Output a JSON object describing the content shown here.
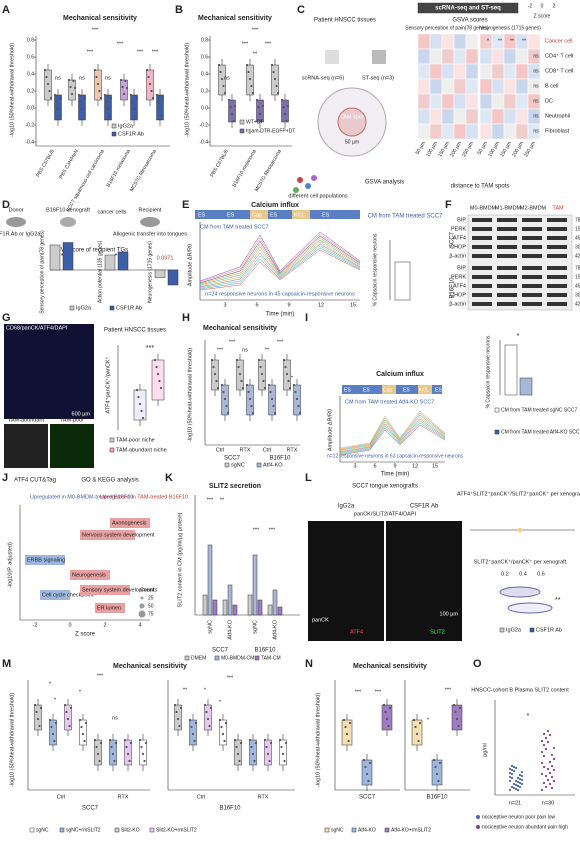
{
  "A": {
    "letter": "A",
    "title": "Mechanical sensitivity",
    "ylabel": "-log10 (50%heat-withdrawal threshold)",
    "yticks": [
      "0.8",
      "0.6",
      "0.4",
      "0.2",
      "0.0",
      "-0.2",
      "-0.4"
    ],
    "groups": [
      "PBS C57BL/6",
      "PBS C3H/HeN",
      "SCC7 squamous cell carcinoma",
      "B16F10 melanoma",
      "MC57G fibrosarcoma"
    ],
    "legend": [
      "IgG2a",
      "CSF1R Ab"
    ],
    "sig": [
      "***",
      "***",
      "***",
      "***",
      "***",
      "ns",
      "ns",
      "ns"
    ]
  },
  "B": {
    "letter": "B",
    "title": "Mechanical sensitivity",
    "ylabel": "-log10 (50%heat-withdrawal threshold)",
    "yticks": [
      "0.8",
      "0.6",
      "0.4",
      "0.2",
      "0.0",
      "-0.2",
      "-0.4"
    ],
    "groups": [
      "PBS C57BL/6",
      "B16F10 melanoma",
      "MC57G fibrosarcoma"
    ],
    "legend": [
      "WT+DT",
      "Itgam-DTR-EGFP+DT"
    ],
    "sig": [
      "***",
      "***",
      "***",
      "**",
      "ns"
    ]
  },
  "C": {
    "letter": "C",
    "tissue": "Patient HNSCC tissues",
    "sc": "scRNA-seq (n=6)",
    "st": "ST-seq (n=3)",
    "spot": "TAM spot",
    "dist": "50 µm",
    "cells": "different cell populations",
    "gsva": "GSVA analysis",
    "header": "scRNA-seq and ST-seq",
    "scores": "GSVA scores",
    "col1": "Sensory perception of pain(78 genes)",
    "col2": "Neurogenesis (1715 genes)",
    "scale": [
      "-2",
      "0",
      "2"
    ],
    "zscore": "Z score",
    "rows": [
      "Cancer cell",
      "CD4⁺ T cell",
      "CD8⁺ T cell",
      "B cell",
      "DC",
      "Neutrophil",
      "Fibroblast"
    ],
    "xlabels": [
      "50 µm",
      "100 µm",
      "150 µm",
      "200 µm",
      "250 µm"
    ],
    "xtitle": "distance to TAM spots",
    "marks": [
      "*",
      "**",
      "**",
      "**",
      "ns",
      "ns",
      "ns",
      "ns",
      "ns",
      "ns"
    ]
  },
  "D": {
    "letter": "D",
    "donor": "Donor",
    "xeno": "B16F10 xenograft",
    "cancer": "cancer cells",
    "recipient": "Recipient",
    "treat": "CSF1R Ab or IgG2a",
    "transfer": "Allogenic transfer into tongues",
    "title": "GSVA score of recipient TGs",
    "ylabels": [
      "Sensory perception of pain(78 genes)",
      "Action potential (135 genes)",
      "Neurogenesis (1715 genes)"
    ],
    "p": "0.0971",
    "sig": [
      "*",
      "*"
    ],
    "legend": [
      "IgG2a",
      "CSF1R Ab"
    ]
  },
  "E": {
    "letter": "E",
    "title": "Calcium influx",
    "stim": [
      "ES",
      "ES",
      "Cap",
      "ES",
      "KCL",
      "ES"
    ],
    "treat": "CM from TAM treated SCC7",
    "ylabel": "Amplitude ΔR/R0",
    "xlabel": "Time (min)",
    "xticks": [
      "3",
      "6",
      "9",
      "12",
      "15"
    ],
    "note": "n=24 responsive neurons in 45 capsaicin-responsive neurons",
    "right_title": "CM from TAM treated SCC7",
    "right_ylabel": "% Capsaicin responsive neurons"
  },
  "F": {
    "letter": "F",
    "cols": [
      "M0-BMDM",
      "M1-BMDM",
      "M2-BMDM",
      "TAM"
    ],
    "rows": [
      "BIP",
      "PERK",
      "ATF4",
      "CHOP",
      "β-actin"
    ],
    "kda": [
      "78",
      "150",
      "49",
      "30",
      "42"
    ],
    "lines": [
      "SCC7",
      "B16F10"
    ]
  },
  "G": {
    "letter": "G",
    "stain": "CD68/panCK/ATF4/DAPI",
    "tissue": "Patient HNSCC tissues",
    "scale": "600 µm",
    "inset1": "TAM-abundant",
    "inset2": "TAM-poor",
    "ylabel": "ATF4⁺panCK⁺/panCK⁺",
    "sig": "***",
    "legend": [
      "TAM-poor niche",
      "TAM-abundant niche"
    ]
  },
  "H": {
    "letter": "H",
    "title": "Mechanical sensitivity",
    "ylabel": "-log10 (50%heat-withdrawal threshold)",
    "lines": [
      "SCC7",
      "B16F10"
    ],
    "cond": [
      "Ctrl",
      "RTX"
    ],
    "legend": [
      "sgNC",
      "Atf4-KO"
    ],
    "sig": [
      "***",
      "***",
      "ns",
      "***",
      "**",
      "*"
    ]
  },
  "I": {
    "letter": "I",
    "title": "Calcium influx",
    "stim": [
      "ES",
      "ES",
      "Cap",
      "ES",
      "KCL",
      "ES"
    ],
    "treat": "CM from TAM treated Atf4-KO SCC7",
    "ylabel": "Amplitude ΔR/R0",
    "xlabel": "Time (min)",
    "xticks": [
      "3",
      "6",
      "9",
      "12",
      "15"
    ],
    "note": "n=12 responsive neurons in 63 capsaicin-responsive neurons",
    "right_ylabel": "% Capsaicin responsive neurons",
    "sig": "*",
    "legend": [
      "CM from TAM treated sgNC SCC7",
      "CM from TAM treated Atf4-KO SCC7"
    ]
  },
  "J": {
    "letter": "J",
    "t1": "ATF4 CUT&Tag",
    "t2": "GO & KEGG analysis",
    "up1": "Upregulated in M0-BMDM-treated B16F10",
    "up2": "Upregulated in TAM-treated B16F10",
    "terms": [
      "ERBB signaling",
      "Nervous system development",
      "Axonogenesis",
      "Neurogenesis",
      "Cell cycle checkpoint",
      "Sensory system development",
      "ER lumen"
    ],
    "counts": "Counts",
    "count_ticks": [
      "25",
      "50",
      "75"
    ],
    "xlabel": "Z score",
    "ylabel": "-log10(P. adjusted)",
    "xticks": [
      "-2",
      "0",
      "2",
      "4"
    ]
  },
  "K": {
    "letter": "K",
    "title": "SLIT2 secretion",
    "ylabel": "SLIT2 content in CM (pg/ml/µg protein)",
    "groups": [
      "sgNC",
      "Atf4-KO",
      "sgNC",
      "Atf4-KO"
    ],
    "lines": [
      "SCC7",
      "B16F10"
    ],
    "legend": [
      "DMEM",
      "M0-BMDM-CM",
      "TAM-CM"
    ],
    "sig": [
      "***",
      "**",
      "***",
      "***"
    ]
  },
  "L": {
    "letter": "L",
    "title": "SCC7 tongue xenografts",
    "g1": "IgG2a",
    "g2": "CSF1R Ab",
    "stain": "panCK/SLIT2/ATF4/DAPI",
    "scale": "100 µm",
    "ch": [
      "panCK",
      "ATF4",
      "SLIT2"
    ],
    "q1": "ATF4⁺SLIT2⁺panCK⁺/SLIT2⁺panCK⁺ per xenograft",
    "q2": "SLIT2⁺panCK⁺/panCK⁺ per xenograft",
    "ticks": [
      "0.2",
      "0.4",
      "0.6"
    ],
    "sig": "**",
    "legend": [
      "IgG2a",
      "CSF1R Ab"
    ]
  },
  "M": {
    "letter": "M",
    "title": "Mechanical sensitivity",
    "ylabel": "-log10 (50%heat-withdrawal threshold)",
    "lines": [
      "SCC7",
      "B16F10"
    ],
    "cond": [
      "Ctrl",
      "RTX"
    ],
    "legend": [
      "sgNC",
      "sgNC+rmSLIT2",
      "Slit2-KO",
      "Slit2-KO+rmSLIT2"
    ],
    "sig": [
      "*",
      "*",
      "***",
      "*",
      "ns",
      "**",
      "*",
      "***",
      "*"
    ]
  },
  "N": {
    "letter": "N",
    "title": "Mechanical sensitivity",
    "ylabel": "-log10 (50%heat-withdrawal threshold)",
    "lines": [
      "SCC7",
      "B16F10"
    ],
    "legend": [
      "sgNC",
      "Atf4-KO",
      "Atf4-KO+rmSLIT2"
    ],
    "sig": [
      "***",
      "***",
      "*",
      "***"
    ]
  },
  "O": {
    "letter": "O",
    "title": "HNSCC-cohort B Plasma SLIT2 content",
    "ylabel": "pg/ml",
    "n": [
      "n=21",
      "n=30"
    ],
    "sig": "*",
    "legend": [
      "nociceptive neuron poor pain low",
      "nociceptive neuron abundant pain high"
    ]
  }
}
